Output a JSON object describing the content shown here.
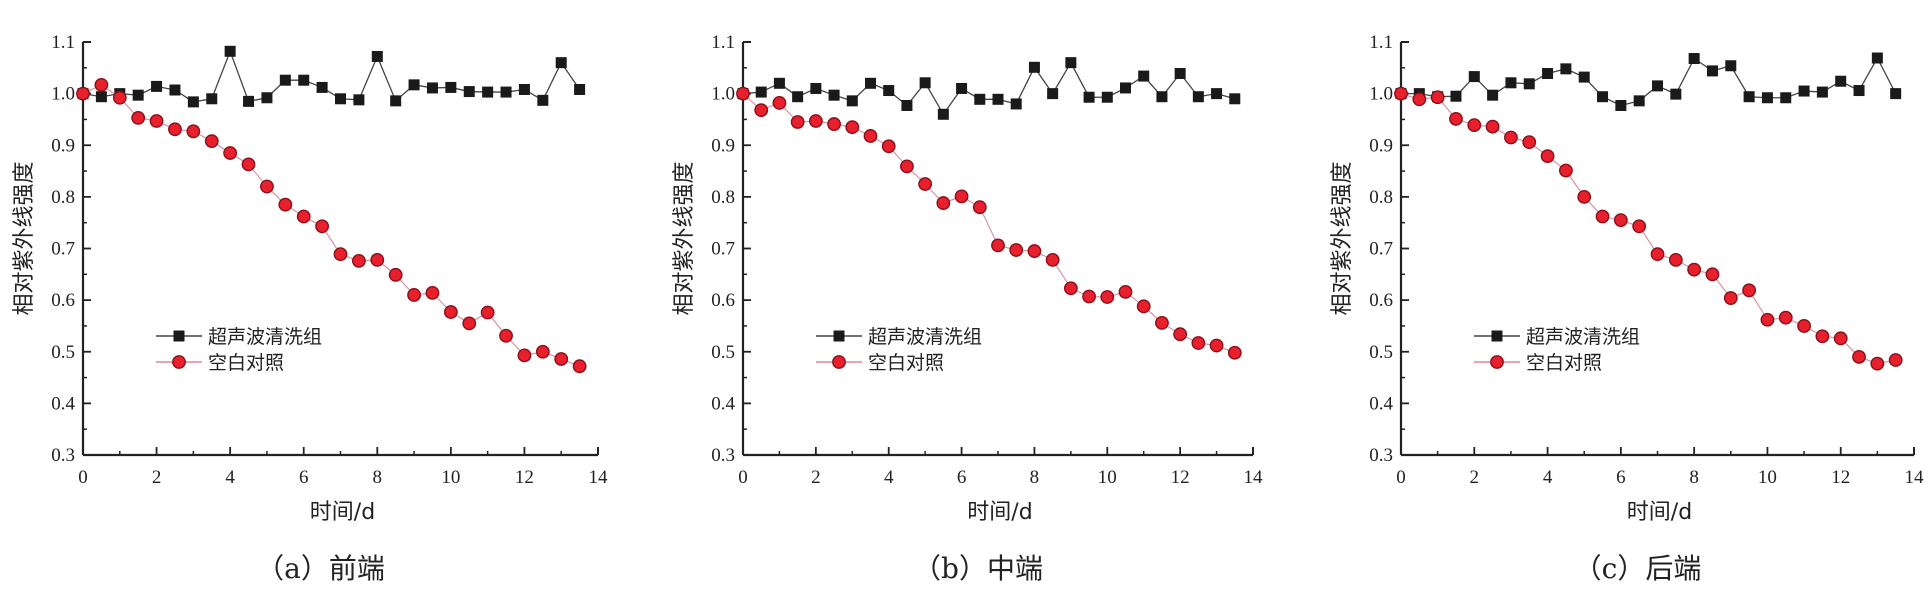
{
  "chart_data": [
    {
      "type": "line",
      "caption": "（a）前端",
      "xlabel": "时间/d",
      "ylabel": "相对紫外线强度",
      "xlim": [
        0,
        14
      ],
      "ylim": [
        0.3,
        1.1
      ],
      "xticks": [
        "0",
        "2",
        "4",
        "6",
        "8",
        "10",
        "12",
        "14"
      ],
      "yticks": [
        "0.3",
        "0.4",
        "0.5",
        "0.6",
        "0.7",
        "0.8",
        "0.9",
        "1.0",
        "1.1"
      ],
      "legend_position": "center-left",
      "x": [
        0,
        0.5,
        1,
        1.5,
        2,
        2.5,
        3,
        3.5,
        4,
        4.5,
        5,
        5.5,
        6,
        6.5,
        7,
        7.5,
        8,
        8.5,
        9,
        9.5,
        10,
        10.5,
        11,
        11.5,
        12,
        12.5,
        13,
        13.5
      ],
      "series": [
        {
          "name": "超声波清洗组",
          "marker": "square",
          "color": "#1a1a1a",
          "values": [
            1.0,
            0.994,
            1.0,
            0.997,
            1.014,
            1.007,
            0.984,
            0.99,
            1.082,
            0.985,
            0.992,
            1.026,
            1.026,
            1.012,
            0.99,
            0.988,
            1.072,
            0.986,
            1.017,
            1.011,
            1.012,
            1.004,
            1.003,
            1.003,
            1.008,
            0.987,
            1.06,
            1.008
          ]
        },
        {
          "name": "空白对照",
          "marker": "circle",
          "color": "#e8202e",
          "values": [
            1.0,
            1.017,
            0.992,
            0.953,
            0.947,
            0.931,
            0.927,
            0.908,
            0.885,
            0.863,
            0.82,
            0.785,
            0.762,
            0.743,
            0.689,
            0.676,
            0.678,
            0.649,
            0.61,
            0.614,
            0.577,
            0.555,
            0.576,
            0.531,
            0.493,
            0.5,
            0.486,
            0.472
          ]
        }
      ]
    },
    {
      "type": "line",
      "caption": "（b）中端",
      "xlabel": "时间/d",
      "ylabel": "相对紫外线强度",
      "xlim": [
        0,
        14
      ],
      "ylim": [
        0.3,
        1.1
      ],
      "xticks": [
        "0",
        "2",
        "4",
        "6",
        "8",
        "10",
        "12",
        "14"
      ],
      "yticks": [
        "0.3",
        "0.4",
        "0.5",
        "0.6",
        "0.7",
        "0.8",
        "0.9",
        "1.0",
        "1.1"
      ],
      "legend_position": "center-left",
      "x": [
        0,
        0.5,
        1,
        1.5,
        2,
        2.5,
        3,
        3.5,
        4,
        4.5,
        5,
        5.5,
        6,
        6.5,
        7,
        7.5,
        8,
        8.5,
        9,
        9.5,
        10,
        10.5,
        11,
        11.5,
        12,
        12.5,
        13,
        13.5
      ],
      "series": [
        {
          "name": "超声波清洗组",
          "marker": "square",
          "color": "#1a1a1a",
          "values": [
            1.0,
            1.003,
            1.02,
            0.994,
            1.01,
            0.997,
            0.986,
            1.02,
            1.006,
            0.977,
            1.021,
            0.96,
            1.01,
            0.989,
            0.989,
            0.98,
            1.051,
            1.0,
            1.06,
            0.993,
            0.993,
            1.011,
            1.034,
            0.994,
            1.039,
            0.994,
            1.0,
            0.99
          ]
        },
        {
          "name": "空白对照",
          "marker": "circle",
          "color": "#e8202e",
          "values": [
            1.0,
            0.968,
            0.982,
            0.945,
            0.947,
            0.941,
            0.935,
            0.918,
            0.898,
            0.859,
            0.825,
            0.788,
            0.801,
            0.78,
            0.706,
            0.697,
            0.695,
            0.678,
            0.623,
            0.607,
            0.606,
            0.616,
            0.588,
            0.556,
            0.534,
            0.517,
            0.512,
            0.498
          ]
        }
      ]
    },
    {
      "type": "line",
      "caption": "（c）后端",
      "xlabel": "时间/d",
      "ylabel": "相对紫外线强度",
      "xlim": [
        0,
        14
      ],
      "ylim": [
        0.3,
        1.1
      ],
      "xticks": [
        "0",
        "2",
        "4",
        "6",
        "8",
        "10",
        "12",
        "14"
      ],
      "yticks": [
        "0.3",
        "0.4",
        "0.5",
        "0.6",
        "0.7",
        "0.8",
        "0.9",
        "1.0",
        "1.1"
      ],
      "legend_position": "center-left",
      "x": [
        0,
        0.5,
        1,
        1.5,
        2,
        2.5,
        3,
        3.5,
        4,
        4.5,
        5,
        5.5,
        6,
        6.5,
        7,
        7.5,
        8,
        8.5,
        9,
        9.5,
        10,
        10.5,
        11,
        11.5,
        12,
        12.5,
        13,
        13.5
      ],
      "series": [
        {
          "name": "超声波清洗组",
          "marker": "square",
          "color": "#1a1a1a",
          "values": [
            1.0,
            1.0,
            0.994,
            0.995,
            1.033,
            0.997,
            1.021,
            1.019,
            1.039,
            1.048,
            1.032,
            0.994,
            0.977,
            0.986,
            1.015,
            0.999,
            1.068,
            1.044,
            1.054,
            0.994,
            0.992,
            0.992,
            1.005,
            1.003,
            1.024,
            1.006,
            1.069,
            1.0
          ]
        },
        {
          "name": "空白对照",
          "marker": "circle",
          "color": "#e8202e",
          "values": [
            1.0,
            0.989,
            0.993,
            0.951,
            0.939,
            0.936,
            0.915,
            0.906,
            0.879,
            0.851,
            0.8,
            0.762,
            0.755,
            0.743,
            0.689,
            0.678,
            0.659,
            0.65,
            0.604,
            0.619,
            0.562,
            0.566,
            0.55,
            0.53,
            0.526,
            0.49,
            0.477,
            0.484
          ]
        }
      ]
    }
  ]
}
